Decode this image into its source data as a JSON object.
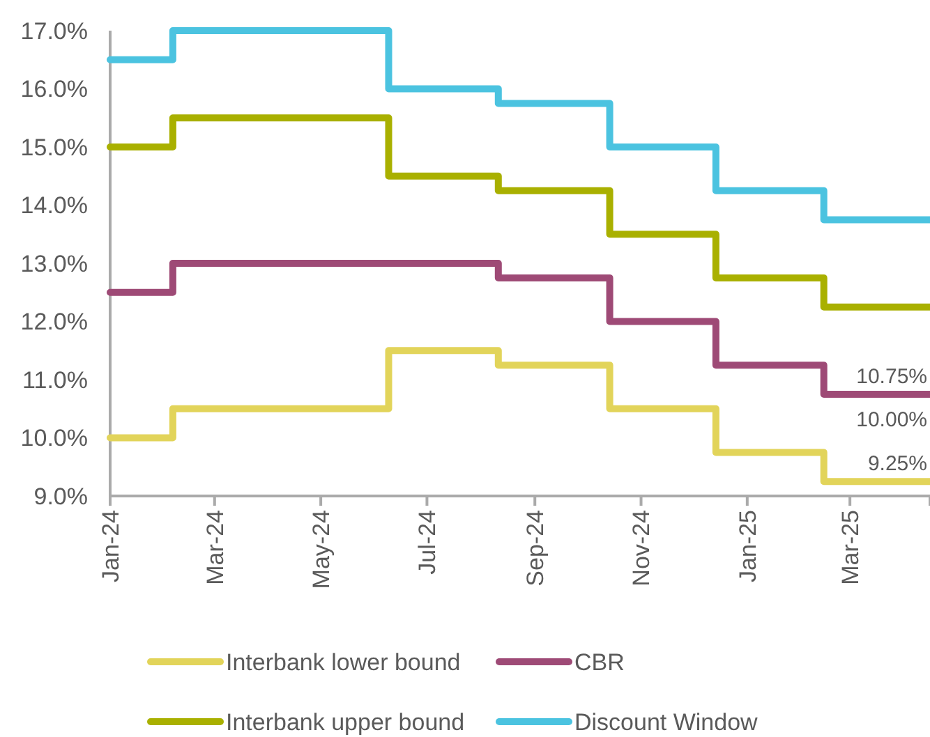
{
  "chart_data": {
    "type": "step",
    "x": [
      "2024-01-01",
      "2024-02-06",
      "2024-06-09",
      "2024-08-11",
      "2024-10-14",
      "2024-12-14",
      "2025-02-14",
      "2025-04-16"
    ],
    "series": [
      {
        "name": "Interbank lower bound",
        "color": "#e2d45a",
        "values": [
          10,
          10.5,
          11.5,
          11.25,
          10.5,
          9.75,
          9.25,
          9.25
        ]
      },
      {
        "name": "CBR",
        "color": "#9e4a76",
        "values": [
          12.5,
          13,
          13,
          12.75,
          12,
          11.25,
          10.75,
          10.75
        ]
      },
      {
        "name": "Interbank upper bound",
        "color": "#a9b000",
        "values": [
          15,
          15.5,
          14.5,
          14.25,
          13.5,
          12.75,
          12.25,
          12.25
        ]
      },
      {
        "name": "Discount Window",
        "color": "#4bc3e0",
        "values": [
          16.5,
          17,
          16,
          15.75,
          15,
          14.25,
          13.75,
          13.75
        ]
      }
    ],
    "xlim": [
      "2024-01-01",
      "2025-04-16"
    ],
    "xticks": [
      {
        "value": "2024-01-01",
        "label": "Jan-24"
      },
      {
        "value": "2024-03-01",
        "label": "Mar-24"
      },
      {
        "value": "2024-05-01",
        "label": "May-24"
      },
      {
        "value": "2024-07-01",
        "label": "Jul-24"
      },
      {
        "value": "2024-09-01",
        "label": "Sep-24"
      },
      {
        "value": "2024-11-01",
        "label": "Nov-24"
      },
      {
        "value": "2025-01-01",
        "label": "Jan-25"
      },
      {
        "value": "2025-03-01",
        "label": "Mar-25"
      }
    ],
    "ylim": [
      9,
      17
    ],
    "yticks": [
      {
        "value": 9,
        "label": "9.0%"
      },
      {
        "value": 10,
        "label": "10.0%"
      },
      {
        "value": 11,
        "label": "11.0%"
      },
      {
        "value": 12,
        "label": "12.0%"
      },
      {
        "value": 13,
        "label": "13.0%"
      },
      {
        "value": 14,
        "label": "14.0%"
      },
      {
        "value": 15,
        "label": "15.0%"
      },
      {
        "value": 16,
        "label": "16.0%"
      },
      {
        "value": 17,
        "label": "17.0%"
      }
    ],
    "annotations": [
      {
        "text": "10.75%",
        "x": "2025-04-16",
        "y": 10.75
      },
      "10.00%",
      {
        "text": "9.25%",
        "x": "2025-04-16",
        "y": 9.25
      }
    ],
    "grid": false,
    "legend": "bottom",
    "line_style": "solid"
  }
}
